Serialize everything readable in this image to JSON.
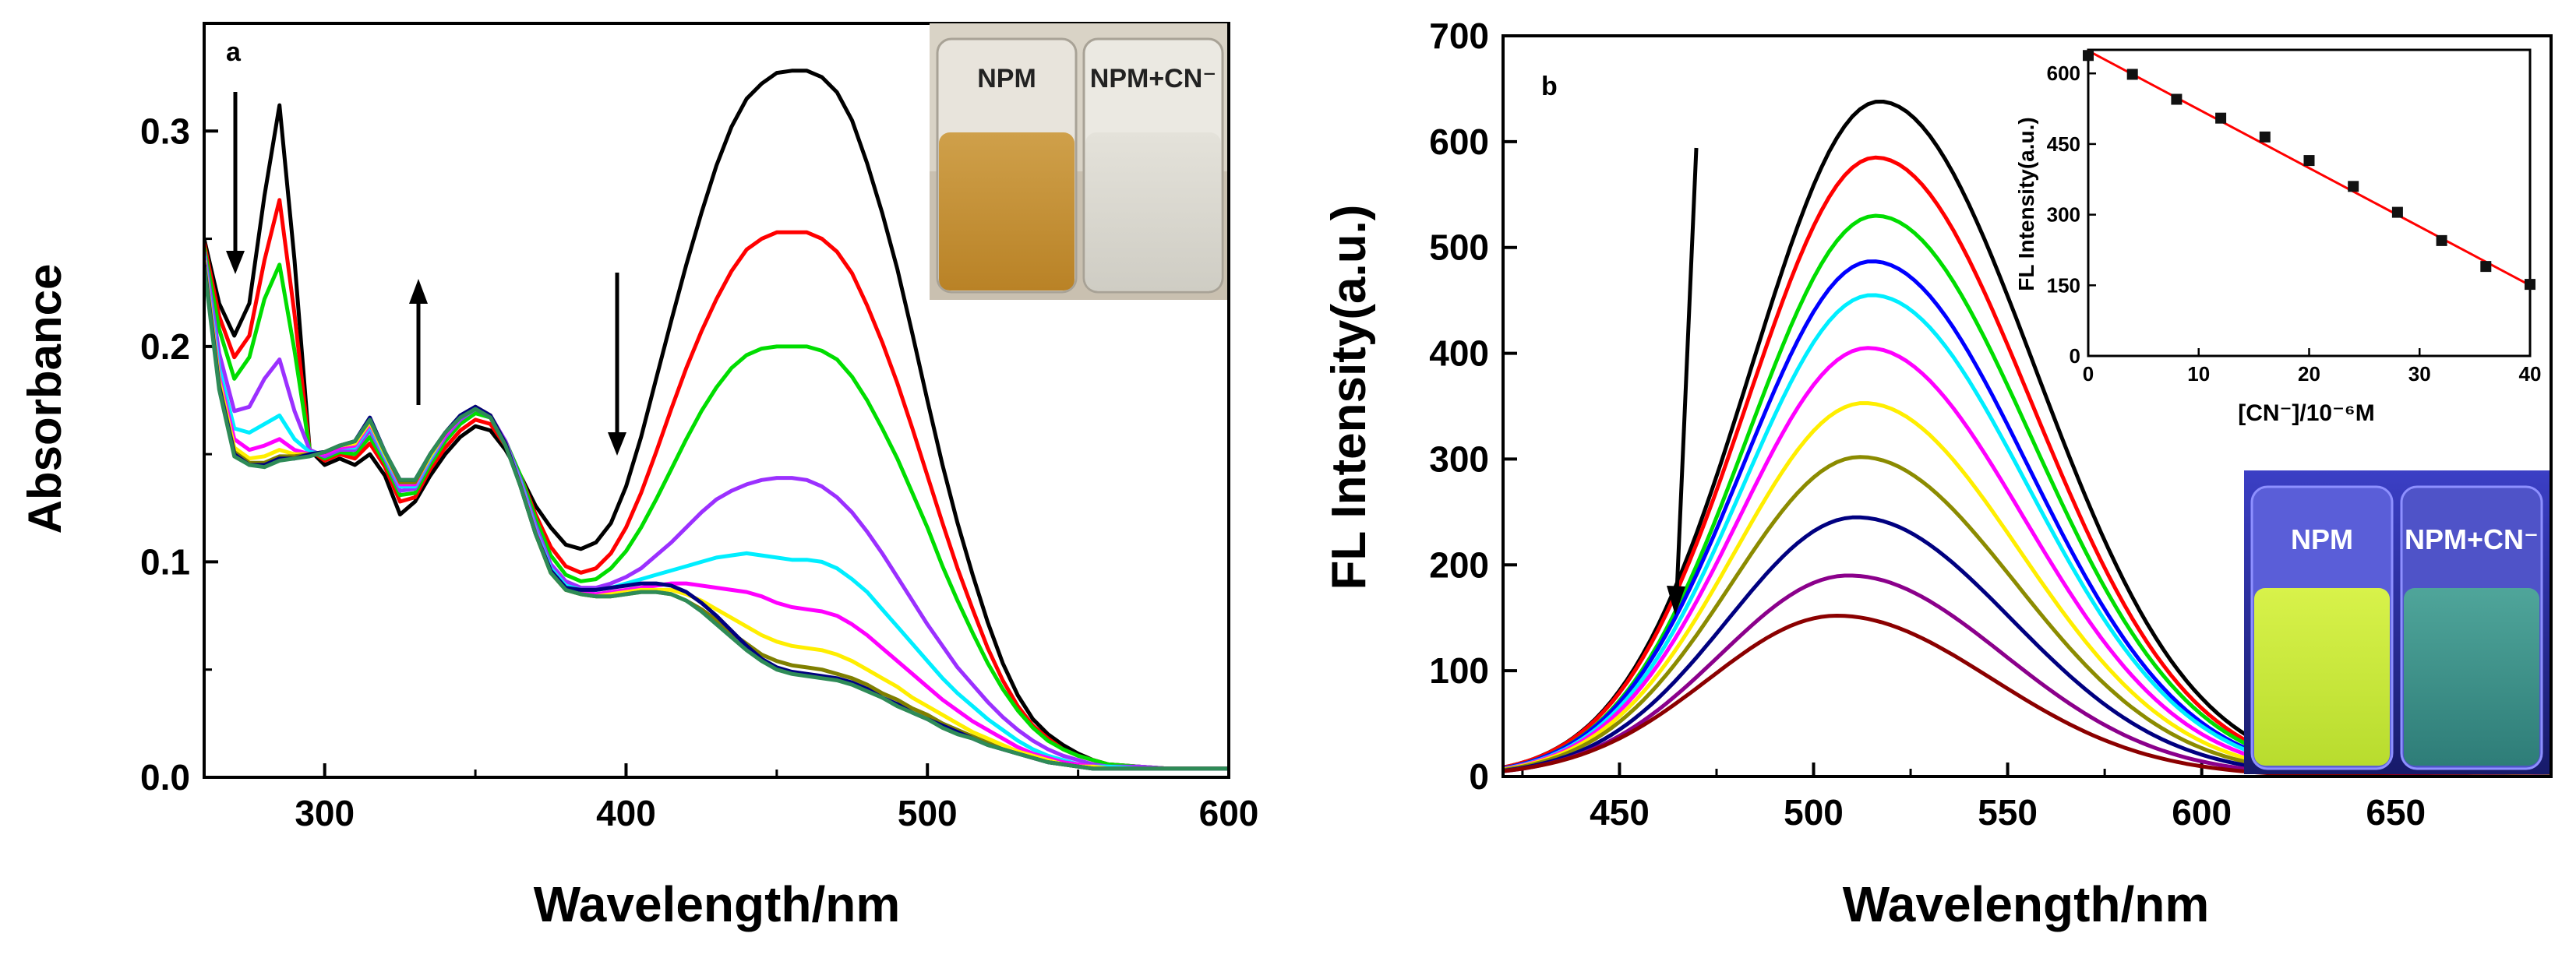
{
  "chart_data": [
    {
      "type": "line",
      "panel_label": "a",
      "xlabel": "Wavelength/nm",
      "ylabel": "Absorbance",
      "xlim": [
        260,
        600
      ],
      "ylim": [
        0.0,
        0.35
      ],
      "xticks": [
        300,
        400,
        500,
        600
      ],
      "yticks": [
        0.0,
        0.1,
        0.2,
        0.3
      ],
      "ytick_labels": [
        "0.0",
        "0.1",
        "0.2",
        "0.3"
      ],
      "grid": false,
      "x": [
        260,
        265,
        270,
        275,
        280,
        285,
        290,
        295,
        300,
        305,
        310,
        315,
        320,
        325,
        330,
        335,
        340,
        345,
        350,
        355,
        360,
        365,
        370,
        375,
        380,
        385,
        390,
        395,
        400,
        405,
        410,
        415,
        420,
        425,
        430,
        435,
        440,
        445,
        450,
        455,
        460,
        465,
        470,
        475,
        480,
        485,
        490,
        495,
        500,
        505,
        510,
        515,
        520,
        525,
        530,
        535,
        540,
        545,
        550,
        555,
        560,
        570,
        580,
        590,
        600
      ],
      "series": [
        {
          "color": "#000000",
          "values": [
            0.25,
            0.22,
            0.205,
            0.22,
            0.27,
            0.312,
            0.24,
            0.152,
            0.145,
            0.148,
            0.145,
            0.15,
            0.14,
            0.122,
            0.128,
            0.14,
            0.15,
            0.158,
            0.163,
            0.161,
            0.152,
            0.14,
            0.126,
            0.116,
            0.108,
            0.106,
            0.109,
            0.118,
            0.135,
            0.158,
            0.185,
            0.212,
            0.238,
            0.262,
            0.284,
            0.302,
            0.315,
            0.322,
            0.327,
            0.328,
            0.328,
            0.325,
            0.318,
            0.305,
            0.285,
            0.262,
            0.236,
            0.206,
            0.175,
            0.145,
            0.118,
            0.094,
            0.072,
            0.053,
            0.038,
            0.027,
            0.02,
            0.015,
            0.011,
            0.008,
            0.006,
            0.005,
            0.004,
            0.004,
            0.004
          ]
        },
        {
          "color": "#ff0000",
          "values": [
            0.248,
            0.214,
            0.195,
            0.205,
            0.24,
            0.268,
            0.215,
            0.152,
            0.147,
            0.15,
            0.148,
            0.155,
            0.144,
            0.128,
            0.13,
            0.143,
            0.153,
            0.161,
            0.166,
            0.164,
            0.154,
            0.14,
            0.122,
            0.107,
            0.098,
            0.095,
            0.097,
            0.104,
            0.116,
            0.132,
            0.151,
            0.171,
            0.19,
            0.207,
            0.222,
            0.235,
            0.245,
            0.25,
            0.253,
            0.253,
            0.253,
            0.25,
            0.244,
            0.234,
            0.219,
            0.202,
            0.183,
            0.162,
            0.14,
            0.118,
            0.097,
            0.078,
            0.06,
            0.045,
            0.033,
            0.024,
            0.018,
            0.013,
            0.01,
            0.008,
            0.006,
            0.005,
            0.004,
            0.004,
            0.004
          ]
        },
        {
          "color": "#00dd00",
          "values": [
            0.246,
            0.208,
            0.185,
            0.195,
            0.222,
            0.238,
            0.198,
            0.152,
            0.148,
            0.151,
            0.15,
            0.158,
            0.146,
            0.131,
            0.132,
            0.145,
            0.156,
            0.164,
            0.169,
            0.167,
            0.156,
            0.14,
            0.12,
            0.103,
            0.094,
            0.091,
            0.092,
            0.097,
            0.105,
            0.116,
            0.129,
            0.143,
            0.157,
            0.17,
            0.181,
            0.19,
            0.196,
            0.199,
            0.2,
            0.2,
            0.2,
            0.198,
            0.194,
            0.186,
            0.175,
            0.162,
            0.148,
            0.132,
            0.116,
            0.098,
            0.082,
            0.067,
            0.053,
            0.041,
            0.031,
            0.023,
            0.017,
            0.013,
            0.01,
            0.008,
            0.006,
            0.005,
            0.004,
            0.004,
            0.004
          ]
        },
        {
          "color": "#9b30ff",
          "values": [
            0.244,
            0.197,
            0.17,
            0.172,
            0.185,
            0.194,
            0.17,
            0.152,
            0.149,
            0.152,
            0.152,
            0.161,
            0.148,
            0.133,
            0.134,
            0.147,
            0.158,
            0.166,
            0.171,
            0.168,
            0.156,
            0.138,
            0.117,
            0.099,
            0.091,
            0.088,
            0.088,
            0.09,
            0.093,
            0.097,
            0.103,
            0.109,
            0.116,
            0.123,
            0.129,
            0.133,
            0.136,
            0.138,
            0.139,
            0.139,
            0.138,
            0.135,
            0.13,
            0.123,
            0.114,
            0.104,
            0.093,
            0.082,
            0.071,
            0.061,
            0.051,
            0.043,
            0.035,
            0.028,
            0.022,
            0.017,
            0.013,
            0.01,
            0.008,
            0.006,
            0.005,
            0.005,
            0.004,
            0.004,
            0.004
          ]
        },
        {
          "color": "#00eeff",
          "values": [
            0.242,
            0.19,
            0.162,
            0.16,
            0.164,
            0.168,
            0.157,
            0.151,
            0.15,
            0.153,
            0.153,
            0.163,
            0.149,
            0.135,
            0.135,
            0.148,
            0.159,
            0.167,
            0.171,
            0.168,
            0.155,
            0.137,
            0.115,
            0.097,
            0.089,
            0.087,
            0.087,
            0.088,
            0.09,
            0.092,
            0.094,
            0.096,
            0.098,
            0.1,
            0.102,
            0.103,
            0.104,
            0.103,
            0.102,
            0.101,
            0.101,
            0.1,
            0.097,
            0.092,
            0.086,
            0.078,
            0.07,
            0.062,
            0.054,
            0.046,
            0.039,
            0.033,
            0.027,
            0.022,
            0.017,
            0.013,
            0.01,
            0.008,
            0.006,
            0.005,
            0.005,
            0.004,
            0.004,
            0.004,
            0.004
          ]
        },
        {
          "color": "#ff00ff",
          "values": [
            0.241,
            0.186,
            0.157,
            0.152,
            0.154,
            0.157,
            0.152,
            0.15,
            0.15,
            0.153,
            0.154,
            0.164,
            0.15,
            0.136,
            0.136,
            0.149,
            0.159,
            0.167,
            0.172,
            0.168,
            0.155,
            0.136,
            0.114,
            0.096,
            0.088,
            0.086,
            0.085,
            0.086,
            0.087,
            0.088,
            0.089,
            0.09,
            0.09,
            0.089,
            0.088,
            0.087,
            0.086,
            0.084,
            0.081,
            0.079,
            0.078,
            0.077,
            0.075,
            0.071,
            0.066,
            0.06,
            0.054,
            0.048,
            0.042,
            0.036,
            0.031,
            0.026,
            0.022,
            0.018,
            0.014,
            0.011,
            0.009,
            0.007,
            0.006,
            0.005,
            0.004,
            0.004,
            0.004,
            0.004,
            0.004
          ]
        },
        {
          "color": "#ffee00",
          "values": [
            0.24,
            0.184,
            0.153,
            0.148,
            0.149,
            0.152,
            0.15,
            0.15,
            0.151,
            0.154,
            0.155,
            0.165,
            0.15,
            0.137,
            0.137,
            0.149,
            0.16,
            0.167,
            0.172,
            0.168,
            0.155,
            0.135,
            0.113,
            0.095,
            0.087,
            0.085,
            0.084,
            0.085,
            0.086,
            0.087,
            0.087,
            0.087,
            0.085,
            0.082,
            0.078,
            0.074,
            0.07,
            0.066,
            0.063,
            0.061,
            0.06,
            0.059,
            0.057,
            0.054,
            0.05,
            0.046,
            0.042,
            0.037,
            0.033,
            0.029,
            0.025,
            0.021,
            0.018,
            0.015,
            0.012,
            0.01,
            0.008,
            0.006,
            0.005,
            0.005,
            0.004,
            0.004,
            0.004,
            0.004,
            0.004
          ]
        },
        {
          "color": "#7f7f00",
          "values": [
            0.239,
            0.182,
            0.151,
            0.146,
            0.146,
            0.149,
            0.149,
            0.15,
            0.151,
            0.154,
            0.156,
            0.166,
            0.151,
            0.137,
            0.137,
            0.15,
            0.16,
            0.168,
            0.172,
            0.168,
            0.155,
            0.135,
            0.113,
            0.095,
            0.087,
            0.085,
            0.084,
            0.084,
            0.085,
            0.086,
            0.086,
            0.085,
            0.082,
            0.078,
            0.073,
            0.067,
            0.062,
            0.057,
            0.054,
            0.052,
            0.051,
            0.05,
            0.048,
            0.046,
            0.043,
            0.039,
            0.036,
            0.032,
            0.029,
            0.025,
            0.022,
            0.019,
            0.016,
            0.013,
            0.011,
            0.009,
            0.007,
            0.006,
            0.005,
            0.004,
            0.004,
            0.004,
            0.004,
            0.004,
            0.004
          ]
        },
        {
          "color": "#000080",
          "values": [
            0.238,
            0.181,
            0.15,
            0.145,
            0.145,
            0.148,
            0.148,
            0.15,
            0.151,
            0.154,
            0.156,
            0.167,
            0.151,
            0.138,
            0.138,
            0.15,
            0.16,
            0.168,
            0.172,
            0.168,
            0.155,
            0.135,
            0.113,
            0.096,
            0.088,
            0.087,
            0.087,
            0.088,
            0.089,
            0.09,
            0.09,
            0.089,
            0.086,
            0.081,
            0.075,
            0.068,
            0.061,
            0.055,
            0.051,
            0.049,
            0.048,
            0.047,
            0.046,
            0.044,
            0.041,
            0.037,
            0.034,
            0.03,
            0.027,
            0.024,
            0.021,
            0.018,
            0.015,
            0.013,
            0.011,
            0.009,
            0.007,
            0.006,
            0.005,
            0.004,
            0.004,
            0.004,
            0.004,
            0.004,
            0.004
          ]
        },
        {
          "color": "#2e8b57",
          "values": [
            0.237,
            0.18,
            0.149,
            0.145,
            0.144,
            0.147,
            0.148,
            0.149,
            0.151,
            0.154,
            0.156,
            0.166,
            0.151,
            0.138,
            0.138,
            0.15,
            0.16,
            0.167,
            0.171,
            0.167,
            0.154,
            0.135,
            0.113,
            0.095,
            0.087,
            0.085,
            0.084,
            0.084,
            0.085,
            0.086,
            0.086,
            0.085,
            0.082,
            0.077,
            0.071,
            0.065,
            0.059,
            0.054,
            0.05,
            0.048,
            0.047,
            0.046,
            0.045,
            0.043,
            0.04,
            0.037,
            0.033,
            0.03,
            0.027,
            0.023,
            0.02,
            0.018,
            0.015,
            0.013,
            0.011,
            0.009,
            0.007,
            0.006,
            0.005,
            0.004,
            0.004,
            0.004,
            0.004,
            0.004,
            0.004
          ]
        }
      ],
      "inset_photo": {
        "labels": [
          "NPM",
          "NPM+CN⁻"
        ]
      },
      "annotations": [
        "down arrow near 285 nm",
        "up arrow near 318 nm",
        "down arrow near 465 nm"
      ]
    },
    {
      "type": "line",
      "panel_label": "b",
      "xlabel": "Wavelength/nm",
      "ylabel": "FL Intensity(a.u.)",
      "xlim": [
        420,
        690
      ],
      "ylim": [
        0,
        700
      ],
      "xticks": [
        450,
        500,
        550,
        600,
        650
      ],
      "yticks": [
        0,
        100,
        200,
        300,
        400,
        500,
        600,
        700
      ],
      "grid": false,
      "series": [
        {
          "color": "#000000",
          "peak_x": 517,
          "peak_y": 638
        },
        {
          "color": "#ff0000",
          "peak_x": 516,
          "peak_y": 585
        },
        {
          "color": "#00dd00",
          "peak_x": 516,
          "peak_y": 530
        },
        {
          "color": "#0000ff",
          "peak_x": 515,
          "peak_y": 487
        },
        {
          "color": "#00eeff",
          "peak_x": 515,
          "peak_y": 455
        },
        {
          "color": "#ff00ff",
          "peak_x": 514,
          "peak_y": 405
        },
        {
          "color": "#ffee00",
          "peak_x": 513,
          "peak_y": 353
        },
        {
          "color": "#8b8b00",
          "peak_x": 512,
          "peak_y": 302
        },
        {
          "color": "#000080",
          "peak_x": 511,
          "peak_y": 245
        },
        {
          "color": "#8b008b",
          "peak_x": 509,
          "peak_y": 190
        },
        {
          "color": "#8b0000",
          "peak_x": 506,
          "peak_y": 152
        }
      ],
      "annotations": [
        "down arrow near 463 nm"
      ],
      "inset_photo": {
        "labels": [
          "NPM",
          "NPM+CN⁻"
        ]
      }
    },
    {
      "type": "scatter",
      "panel_label": "b-inset",
      "xlabel": "[CN⁻]/10⁻⁶M",
      "ylabel": "FL Intensity(a.u.)",
      "xlim": [
        0,
        40
      ],
      "ylim": [
        0,
        650
      ],
      "xticks": [
        0,
        10,
        20,
        30,
        40
      ],
      "yticks": [
        0,
        150,
        300,
        450,
        600
      ],
      "x": [
        0,
        4,
        8,
        12,
        16,
        20,
        24,
        28,
        32,
        36,
        40
      ],
      "values": [
        638,
        598,
        545,
        505,
        465,
        415,
        360,
        305,
        245,
        190,
        152
      ],
      "fit_line": {
        "color": "#ff0000",
        "x": [
          0,
          40
        ],
        "y": [
          648,
          150
        ]
      }
    }
  ]
}
